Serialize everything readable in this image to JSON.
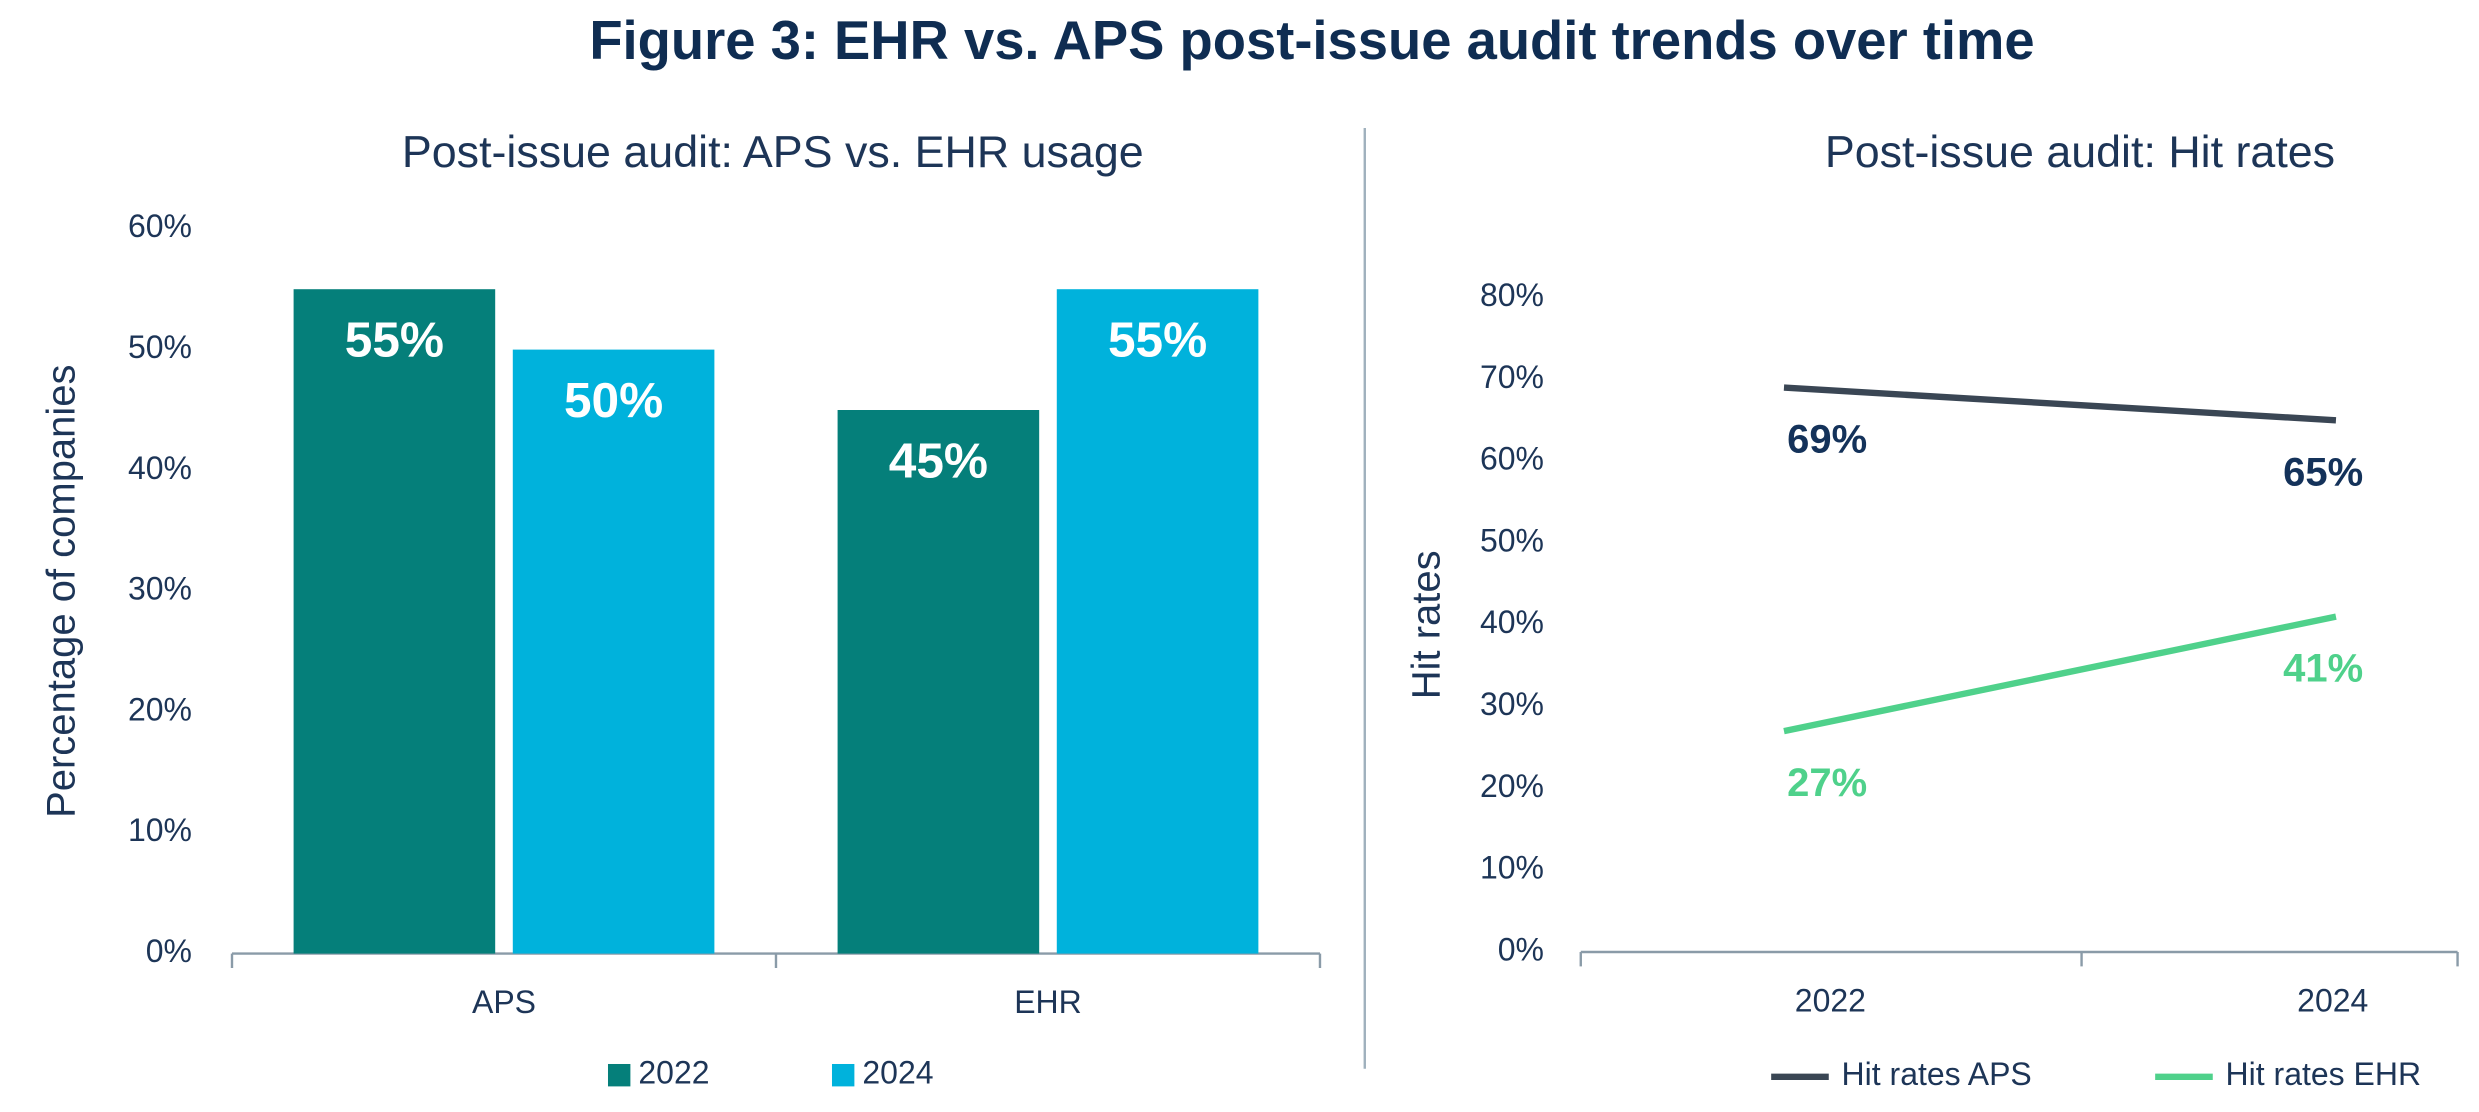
{
  "title": "Figure 3: EHR vs. APS post-issue audit trends over time",
  "chart_data": [
    {
      "type": "bar",
      "title": "Post-issue audit: APS vs. EHR usage",
      "y_label": "Percentage of companies",
      "categories": [
        "APS",
        "EHR"
      ],
      "series": [
        {
          "name": "2022",
          "color": "#057f7a",
          "values": [
            55,
            45
          ],
          "value_labels": [
            "55%",
            "45%"
          ]
        },
        {
          "name": "2024",
          "color": "#00b2dc",
          "values": [
            50,
            55
          ],
          "value_labels": [
            "50%",
            "55%"
          ]
        }
      ],
      "ylim": [
        0,
        60
      ],
      "yticks": [
        {
          "value": 0,
          "label": "0%"
        },
        {
          "value": 10,
          "label": "10%"
        },
        {
          "value": 20,
          "label": "20%"
        },
        {
          "value": 30,
          "label": "30%"
        },
        {
          "value": 40,
          "label": "40%"
        },
        {
          "value": 50,
          "label": "50%"
        },
        {
          "value": 60,
          "label": "60%"
        }
      ]
    },
    {
      "type": "line",
      "title": "Post-issue audit: Hit rates",
      "y_label": "Hit rates",
      "categories": [
        "2022",
        "2024"
      ],
      "series": [
        {
          "name": "Hit rates APS",
          "color": "#3a4654",
          "label_color": "#14325a",
          "values": [
            69,
            65
          ],
          "value_labels": [
            "69%",
            "65%"
          ]
        },
        {
          "name": "Hit rates EHR",
          "color": "#4fd18b",
          "label_color": "#4fd18b",
          "values": [
            27,
            41
          ],
          "value_labels": [
            "27%",
            "41%"
          ]
        }
      ],
      "ylim": [
        0,
        80
      ],
      "yticks": [
        {
          "value": 0,
          "label": "0%"
        },
        {
          "value": 10,
          "label": "10%"
        },
        {
          "value": 20,
          "label": "20%"
        },
        {
          "value": 30,
          "label": "30%"
        },
        {
          "value": 40,
          "label": "40%"
        },
        {
          "value": 50,
          "label": "50%"
        },
        {
          "value": 60,
          "label": "60%"
        },
        {
          "value": 70,
          "label": "70%"
        },
        {
          "value": 80,
          "label": "80%"
        }
      ]
    }
  ]
}
